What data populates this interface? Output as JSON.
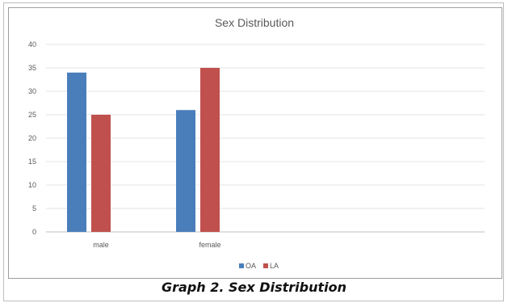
{
  "chart_data": {
    "type": "bar",
    "title": "Sex Distribution",
    "categories": [
      "male",
      "female"
    ],
    "series": [
      {
        "name": "OA",
        "values": [
          34,
          26
        ],
        "color": "#4a7ebb"
      },
      {
        "name": "LA",
        "values": [
          25,
          35
        ],
        "color": "#c0504d"
      }
    ],
    "ylim": [
      0,
      40
    ],
    "yticks": [
      0,
      5,
      10,
      15,
      20,
      25,
      30,
      35,
      40
    ],
    "xlabel": "",
    "ylabel": "",
    "grid": true,
    "legend_position": "bottom"
  },
  "caption": "Graph 2. Sex Distribution"
}
